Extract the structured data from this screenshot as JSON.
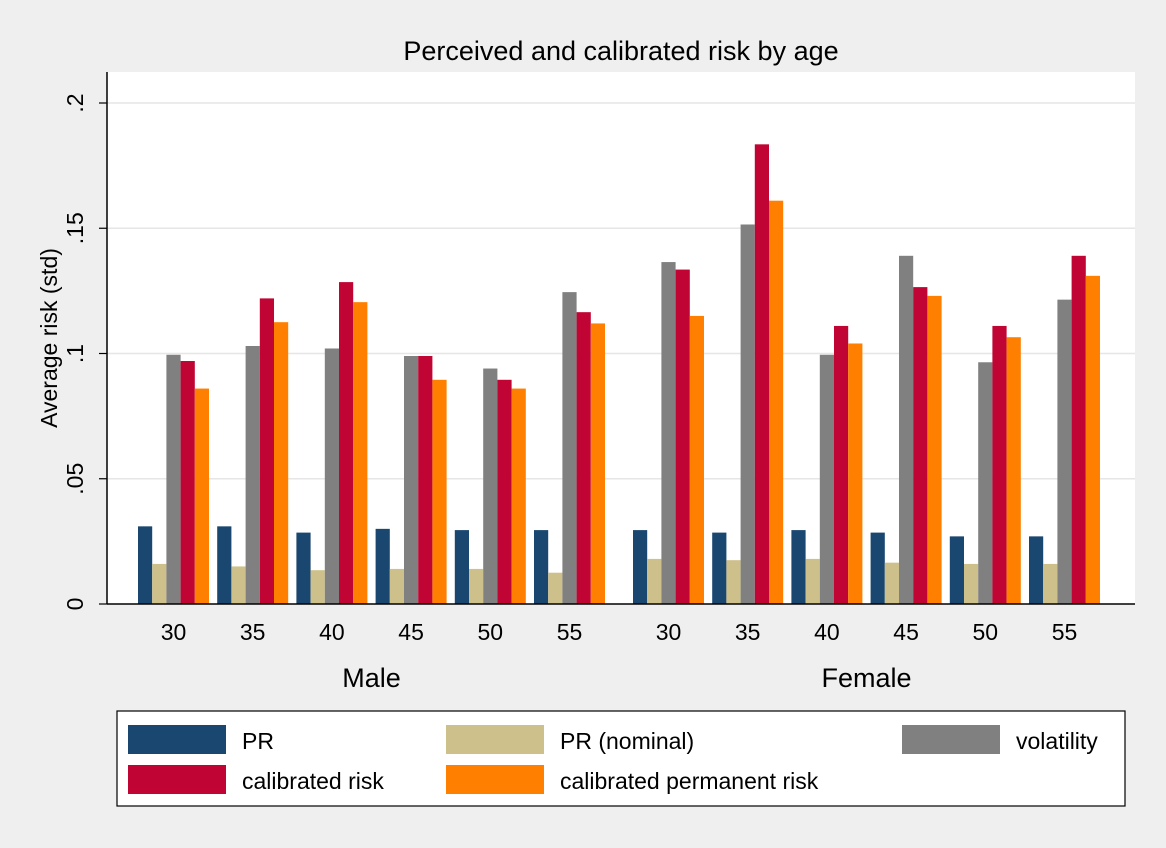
{
  "chart_data": {
    "type": "bar",
    "title": "Perceived and calibrated risk by age",
    "ylabel": "Average risk (std)",
    "xlabel": "",
    "ylim": [
      0,
      0.2
    ],
    "yticks": [
      {
        "value": 0,
        "label": "0"
      },
      {
        "value": 0.05,
        "label": ".05"
      },
      {
        "value": 0.1,
        "label": ".1"
      },
      {
        "value": 0.15,
        "label": ".15"
      },
      {
        "value": 0.2,
        "label": ".2"
      }
    ],
    "grid": true,
    "legend_position": "bottom",
    "groups": [
      {
        "label": "Male",
        "categories": [
          "30",
          "35",
          "40",
          "45",
          "50",
          "55"
        ]
      },
      {
        "label": "Female",
        "categories": [
          "30",
          "35",
          "40",
          "45",
          "50",
          "55"
        ]
      }
    ],
    "series": [
      {
        "name": "PR",
        "color": "#1a476f",
        "values": [
          0.031,
          0.031,
          0.0285,
          0.03,
          0.0295,
          0.0295,
          0.0295,
          0.0285,
          0.0295,
          0.0285,
          0.027,
          0.027
        ]
      },
      {
        "name": "PR (nominal)",
        "color": "#cec08b",
        "values": [
          0.016,
          0.015,
          0.0135,
          0.014,
          0.014,
          0.0125,
          0.018,
          0.0175,
          0.018,
          0.0165,
          0.016,
          0.016
        ]
      },
      {
        "name": "volatility",
        "color": "#808080",
        "values": [
          0.0995,
          0.103,
          0.102,
          0.099,
          0.094,
          0.1245,
          0.1365,
          0.1515,
          0.0995,
          0.139,
          0.0965,
          0.1215
        ]
      },
      {
        "name": "calibrated risk",
        "color": "#c00433",
        "values": [
          0.097,
          0.122,
          0.1285,
          0.099,
          0.0895,
          0.1165,
          0.1335,
          0.1835,
          0.111,
          0.1265,
          0.111,
          0.139
        ]
      },
      {
        "name": "calibrated permanent risk",
        "color": "#ff7f00",
        "values": [
          0.086,
          0.1125,
          0.1205,
          0.0895,
          0.086,
          0.112,
          0.115,
          0.161,
          0.104,
          0.123,
          0.1065,
          0.131
        ]
      }
    ]
  }
}
